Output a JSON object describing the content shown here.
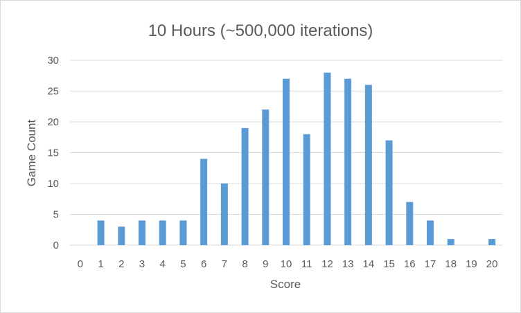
{
  "chart_data": {
    "type": "bar",
    "title": "10 Hours (~500,000 iterations)",
    "xlabel": "Score",
    "ylabel": "Game Count",
    "categories": [
      "0",
      "1",
      "2",
      "3",
      "4",
      "5",
      "6",
      "7",
      "8",
      "9",
      "10",
      "11",
      "12",
      "13",
      "14",
      "15",
      "16",
      "17",
      "18",
      "19",
      "20"
    ],
    "values": [
      0,
      4,
      3,
      4,
      4,
      4,
      14,
      10,
      19,
      22,
      27,
      18,
      28,
      27,
      26,
      17,
      7,
      4,
      1,
      0,
      1
    ],
    "ylim": [
      0,
      30
    ],
    "yticks": [
      "0",
      "5",
      "10",
      "15",
      "20",
      "25",
      "30"
    ],
    "grid": true,
    "legend": "none",
    "bar_color": "#5b9bd5",
    "grid_color": "#d9d9d9"
  }
}
